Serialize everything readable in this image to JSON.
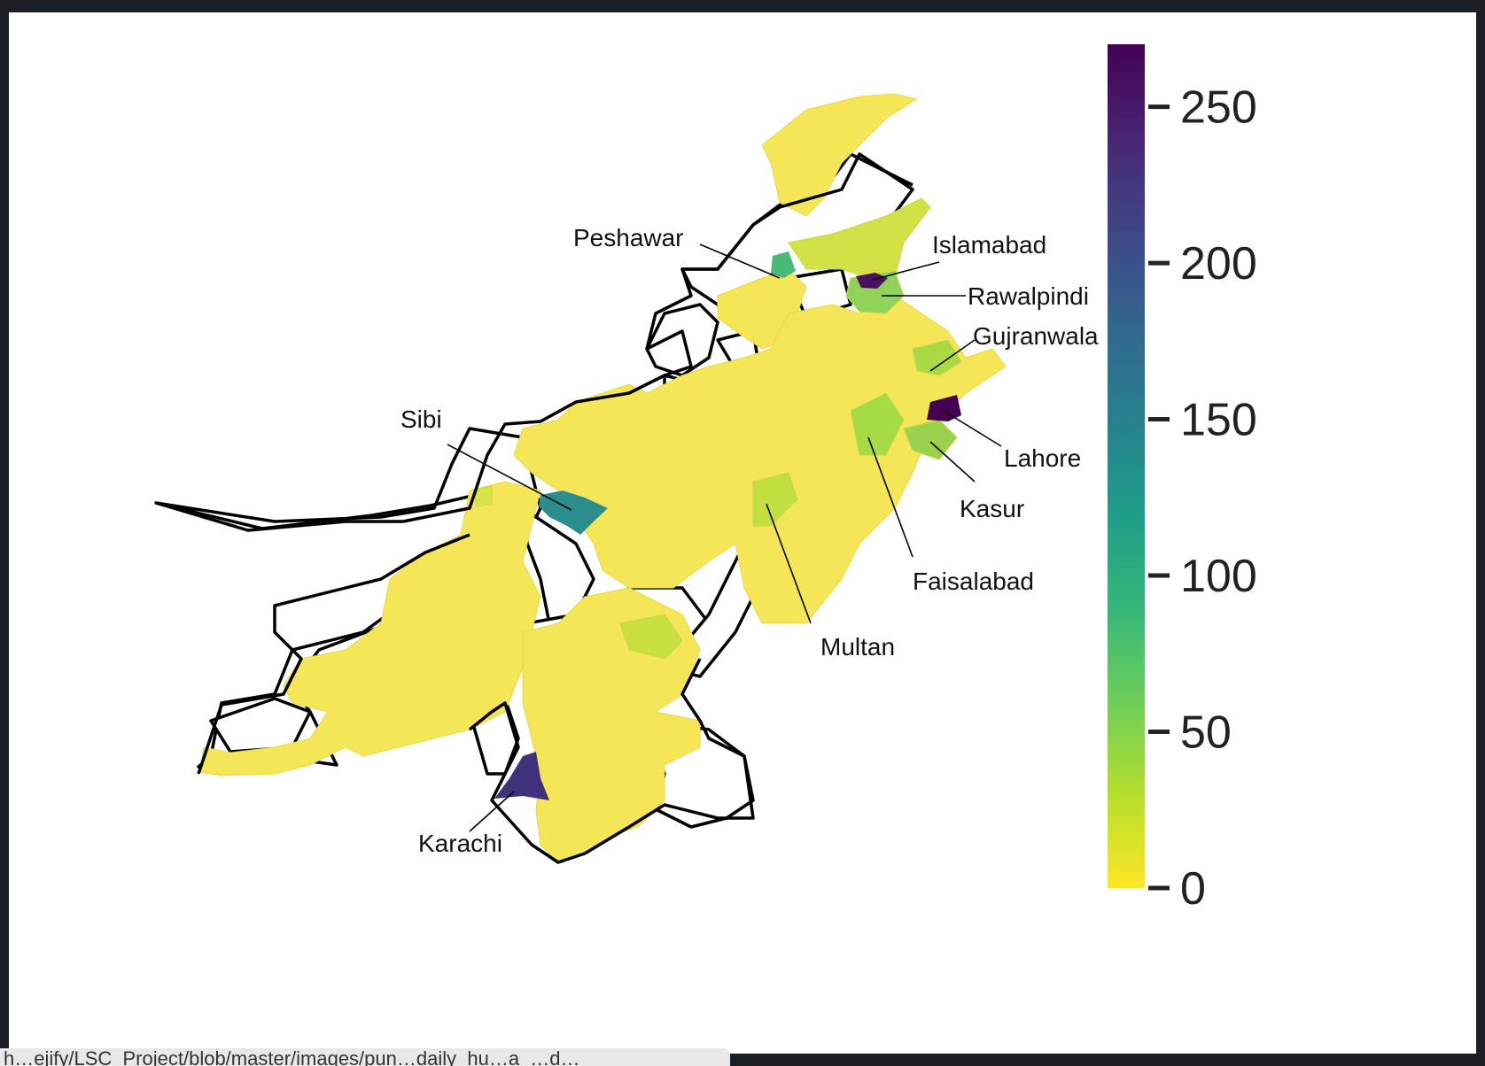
{
  "map": {
    "title": "",
    "colormap": "viridis_r",
    "colorbar": {
      "min": 0,
      "max": 270,
      "ticks": [
        0,
        50,
        100,
        150,
        200,
        250
      ],
      "colors": [
        "#fde725",
        "#b5de2b",
        "#6ece58",
        "#35b779",
        "#1f9e89",
        "#26828e",
        "#31688e",
        "#3e4989",
        "#482878",
        "#440154"
      ]
    },
    "labels": [
      {
        "name": "Peshawar",
        "value": 110
      },
      {
        "name": "Islamabad",
        "value": 265
      },
      {
        "name": "Rawalpindi",
        "value": 75
      },
      {
        "name": "Gujranwala",
        "value": 55
      },
      {
        "name": "Lahore",
        "value": 268
      },
      {
        "name": "Kasur",
        "value": 55
      },
      {
        "name": "Faisalabad",
        "value": 45
      },
      {
        "name": "Multan",
        "value": 35
      },
      {
        "name": "Sibi",
        "value": 140
      },
      {
        "name": "Karachi",
        "value": 240
      }
    ],
    "no_data_color": "#ffffff",
    "base_color": "#f4e656"
  },
  "status_bar": {
    "text": "h…ejify/LSC_Project/blob/master/images/pun…daily_hu…a_…d…"
  }
}
